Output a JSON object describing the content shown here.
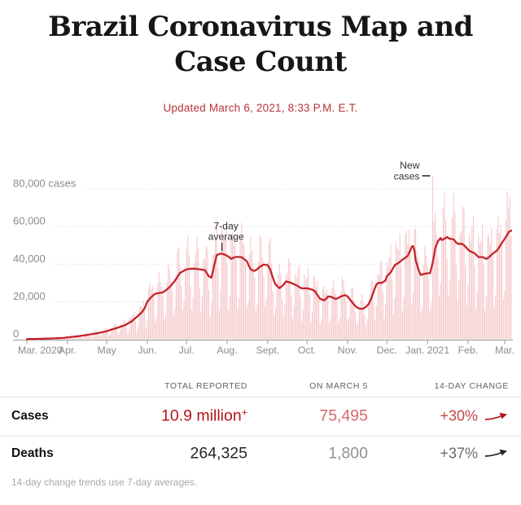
{
  "header": {
    "title_line1": "Brazil Coronavirus Map and",
    "title_line2": "Case Count",
    "updated": "Updated March 6, 2021, 8:33 P.M. E.T."
  },
  "colors": {
    "accent_red": "#b3151a",
    "line_red": "#c5232b",
    "bar_pink": "#f5c8ca",
    "grid_gray": "#d9d9d9",
    "axis_gray": "#9a9a9a",
    "axis_label_gray": "#8b8b8b",
    "annotation_dark": "#333333",
    "deaths_arrow_black": "#222222"
  },
  "chart_data": {
    "type": "bar+line",
    "description": "Daily new reported coronavirus cases in Brazil (pink bars) with 7-day average (red line), Mar. 2020 - Mar. 2021",
    "x_start": "Mar. 1, 2020",
    "x_days": 370,
    "ylim": [
      0,
      88000
    ],
    "grid": true,
    "yticks": [
      {
        "value": 80000,
        "label": "80,000 cases"
      },
      {
        "value": 60000,
        "label": "60,000"
      },
      {
        "value": 40000,
        "label": "40,000"
      },
      {
        "value": 20000,
        "label": "20,000"
      },
      {
        "value": 0,
        "label": "0"
      }
    ],
    "xticks": [
      {
        "day": 0,
        "label": "Mar. 2020"
      },
      {
        "day": 31,
        "label": "Apr."
      },
      {
        "day": 61,
        "label": "May"
      },
      {
        "day": 92,
        "label": "Jun."
      },
      {
        "day": 122,
        "label": "Jul."
      },
      {
        "day": 153,
        "label": "Aug."
      },
      {
        "day": 184,
        "label": "Sept."
      },
      {
        "day": 214,
        "label": "Oct."
      },
      {
        "day": 245,
        "label": "Nov."
      },
      {
        "day": 275,
        "label": "Dec."
      },
      {
        "day": 306,
        "label": "Jan. 2021"
      },
      {
        "day": 337,
        "label": "Feb."
      },
      {
        "day": 365,
        "label": "Mar."
      }
    ],
    "series": [
      {
        "name": "7-day average",
        "type": "line",
        "points": [
          [
            0,
            100
          ],
          [
            7,
            200
          ],
          [
            14,
            320
          ],
          [
            21,
            480
          ],
          [
            28,
            700
          ],
          [
            31,
            1000
          ],
          [
            38,
            1500
          ],
          [
            45,
            2200
          ],
          [
            52,
            3000
          ],
          [
            58,
            3800
          ],
          [
            61,
            4300
          ],
          [
            65,
            5200
          ],
          [
            70,
            6300
          ],
          [
            75,
            7500
          ],
          [
            80,
            9500
          ],
          [
            85,
            12500
          ],
          [
            88,
            14500
          ],
          [
            90,
            16500
          ],
          [
            92,
            20000
          ],
          [
            95,
            22500
          ],
          [
            98,
            24200
          ],
          [
            101,
            24600
          ],
          [
            104,
            25000
          ],
          [
            107,
            26500
          ],
          [
            110,
            28500
          ],
          [
            113,
            31000
          ],
          [
            117,
            35300
          ],
          [
            120,
            36500
          ],
          [
            122,
            37200
          ],
          [
            126,
            37600
          ],
          [
            129,
            37500
          ],
          [
            132,
            37200
          ],
          [
            136,
            36800
          ],
          [
            139,
            33500
          ],
          [
            141,
            32800
          ],
          [
            143,
            39000
          ],
          [
            145,
            44800
          ],
          [
            148,
            45600
          ],
          [
            150,
            45300
          ],
          [
            152,
            44800
          ],
          [
            154,
            44000
          ],
          [
            156,
            42800
          ],
          [
            158,
            43400
          ],
          [
            160,
            43900
          ],
          [
            162,
            43800
          ],
          [
            164,
            43700
          ],
          [
            166,
            42700
          ],
          [
            168,
            41500
          ],
          [
            170,
            38500
          ],
          [
            171,
            37200
          ],
          [
            173,
            36500
          ],
          [
            174,
            36400
          ],
          [
            176,
            37300
          ],
          [
            178,
            38600
          ],
          [
            181,
            39800
          ],
          [
            183,
            39500
          ],
          [
            184,
            39400
          ],
          [
            186,
            37000
          ],
          [
            188,
            32500
          ],
          [
            190,
            29100
          ],
          [
            193,
            27200
          ],
          [
            196,
            29000
          ],
          [
            198,
            30800
          ],
          [
            200,
            30400
          ],
          [
            202,
            30000
          ],
          [
            204,
            29300
          ],
          [
            206,
            28700
          ],
          [
            208,
            27800
          ],
          [
            210,
            27100
          ],
          [
            214,
            27100
          ],
          [
            216,
            26800
          ],
          [
            218,
            26400
          ],
          [
            220,
            25600
          ],
          [
            222,
            23500
          ],
          [
            224,
            21500
          ],
          [
            227,
            20700
          ],
          [
            229,
            21800
          ],
          [
            230,
            22800
          ],
          [
            232,
            22600
          ],
          [
            233,
            22400
          ],
          [
            235,
            21700
          ],
          [
            236,
            21400
          ],
          [
            238,
            22000
          ],
          [
            240,
            22800
          ],
          [
            242,
            23300
          ],
          [
            243,
            23500
          ],
          [
            245,
            22800
          ],
          [
            247,
            21000
          ],
          [
            249,
            19200
          ],
          [
            251,
            17600
          ],
          [
            253,
            16600
          ],
          [
            255,
            16200
          ],
          [
            257,
            16300
          ],
          [
            259,
            17200
          ],
          [
            261,
            18600
          ],
          [
            263,
            21500
          ],
          [
            264,
            23500
          ],
          [
            266,
            27500
          ],
          [
            267,
            29200
          ],
          [
            268,
            29800
          ],
          [
            269,
            30100
          ],
          [
            270,
            29900
          ],
          [
            271,
            30000
          ],
          [
            273,
            30800
          ],
          [
            274,
            31400
          ],
          [
            275,
            33500
          ],
          [
            277,
            34900
          ],
          [
            278,
            35700
          ],
          [
            280,
            38200
          ],
          [
            281,
            39400
          ],
          [
            283,
            40300
          ],
          [
            284,
            40700
          ],
          [
            286,
            41800
          ],
          [
            287,
            42400
          ],
          [
            289,
            43300
          ],
          [
            291,
            44500
          ],
          [
            293,
            47500
          ],
          [
            294,
            49300
          ],
          [
            295,
            49600
          ],
          [
            296,
            47500
          ],
          [
            297,
            42100
          ],
          [
            299,
            37500
          ],
          [
            300,
            35700
          ],
          [
            301,
            34200
          ],
          [
            303,
            34700
          ],
          [
            305,
            35000
          ],
          [
            306,
            35100
          ],
          [
            308,
            35200
          ],
          [
            310,
            40700
          ],
          [
            312,
            48500
          ],
          [
            314,
            52200
          ],
          [
            316,
            53900
          ],
          [
            317,
            52800
          ],
          [
            318,
            53200
          ],
          [
            319,
            53500
          ],
          [
            321,
            54400
          ],
          [
            323,
            53500
          ],
          [
            325,
            53300
          ],
          [
            326,
            53200
          ],
          [
            328,
            51400
          ],
          [
            330,
            50700
          ],
          [
            332,
            50900
          ],
          [
            334,
            50000
          ],
          [
            336,
            48500
          ],
          [
            338,
            47100
          ],
          [
            340,
            46400
          ],
          [
            342,
            45800
          ],
          [
            345,
            43700
          ],
          [
            348,
            43800
          ],
          [
            351,
            42800
          ],
          [
            353,
            43700
          ],
          [
            355,
            45000
          ],
          [
            357,
            46200
          ],
          [
            359,
            47100
          ],
          [
            361,
            49200
          ],
          [
            363,
            51400
          ],
          [
            365,
            53500
          ],
          [
            367,
            55600
          ],
          [
            368,
            57100
          ],
          [
            370,
            57800
          ]
        ]
      },
      {
        "name": "New cases",
        "type": "bar",
        "derived_from": "7-day average",
        "weekly_multipliers": [
          0.38,
          0.52,
          1.12,
          1.3,
          1.38,
          1.33,
          0.88
        ],
        "wobble": [
          0.12,
          1.7,
          0.06,
          0.9
        ],
        "spikes": [
          [
            310,
            87000
          ],
          [
            369,
            75500
          ]
        ]
      }
    ],
    "annotations": [
      {
        "label_lines": [
          "New",
          "cases"
        ],
        "target_day": 310,
        "target_value": 87000,
        "connector": "dash"
      },
      {
        "label_lines": [
          "7-day",
          "average"
        ],
        "target_day": 149,
        "target_value": 45500,
        "connector": "tick"
      }
    ]
  },
  "table": {
    "headers": [
      "TOTAL REPORTED",
      "ON MARCH 5",
      "14-DAY CHANGE"
    ],
    "rows": [
      {
        "label": "Cases",
        "total": "10.9 million",
        "total_sup": "+",
        "on_date": "75,495",
        "change": "+30%",
        "trend": "up"
      },
      {
        "label": "Deaths",
        "total": "264,325",
        "total_sup": "",
        "on_date": "1,800",
        "change": "+37%",
        "trend": "up"
      }
    ],
    "footnote": "14-day change trends use 7-day averages."
  }
}
